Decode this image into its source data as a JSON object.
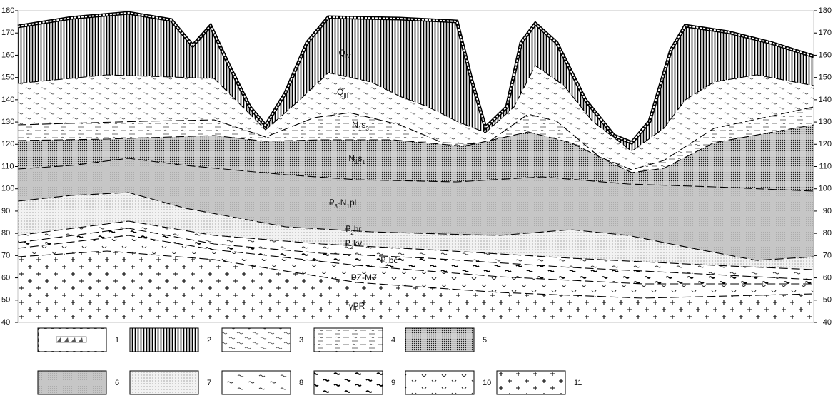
{
  "scale": {
    "ticks": [
      40,
      50,
      60,
      70,
      80,
      90,
      100,
      110,
      120,
      130,
      140,
      150,
      160,
      170,
      180
    ]
  },
  "units": [
    {
      "label": [
        {
          "text": "Q"
        },
        {
          "text": "IV",
          "sub": true
        }
      ]
    },
    {
      "label": [
        {
          "text": "Q"
        },
        {
          "text": "III",
          "sub": true
        }
      ]
    },
    {
      "label": [
        {
          "text": "N"
        },
        {
          "text": "1",
          "sub": true
        },
        {
          "text": "s"
        },
        {
          "text": "3",
          "sub": true
        }
      ]
    },
    {
      "label": [
        {
          "text": "N"
        },
        {
          "text": "1",
          "sub": true
        },
        {
          "text": "s"
        },
        {
          "text": "1",
          "sub": true
        }
      ]
    },
    {
      "label": [
        {
          "text": "₽"
        },
        {
          "text": "3",
          "sub": true
        },
        {
          "text": "-N"
        },
        {
          "text": "1",
          "sub": true
        },
        {
          "text": "pl"
        }
      ]
    },
    {
      "label": [
        {
          "text": "₽"
        },
        {
          "text": "2",
          "sub": true
        },
        {
          "text": "hr"
        }
      ]
    },
    {
      "label": [
        {
          "text": "₽"
        },
        {
          "text": "2",
          "sub": true
        },
        {
          "text": "kv"
        }
      ]
    },
    {
      "label": [
        {
          "text": "₽"
        },
        {
          "text": "2",
          "sub": true
        },
        {
          "text": "bč"
        }
      ]
    },
    {
      "label": [
        {
          "text": "PZ-MZ"
        }
      ]
    },
    {
      "label": [
        {
          "text": "γPR"
        }
      ]
    }
  ],
  "legend": [
    {
      "number": "1",
      "pattern": "p1"
    },
    {
      "number": "2",
      "pattern": "p2"
    },
    {
      "number": "3",
      "pattern": "p3"
    },
    {
      "number": "4",
      "pattern": "p4"
    },
    {
      "number": "5",
      "pattern": "p5"
    },
    {
      "number": "6",
      "pattern": "p6"
    },
    {
      "number": "7",
      "pattern": "p7"
    },
    {
      "number": "8",
      "pattern": "p8"
    },
    {
      "number": "9",
      "pattern": "p9"
    },
    {
      "number": "10",
      "pattern": "p10"
    },
    {
      "number": "11",
      "pattern": "p11"
    }
  ]
}
